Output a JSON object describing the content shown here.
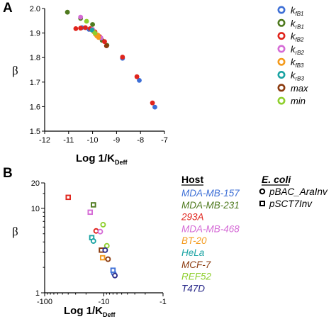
{
  "figure": {
    "panel_labels": [
      "A",
      "B"
    ],
    "colors": {
      "kfB1": "#3d6fd6",
      "krB1": "#4f7a1f",
      "kfB2": "#e0241c",
      "krB2": "#d56bd6",
      "kfB3": "#f49a1c",
      "krB3": "#1aa3a3",
      "max": "#8b3a0e",
      "min": "#8fcf2e",
      "T47D": "#2b2b8a"
    }
  },
  "chart_data": [
    {
      "panel": "A",
      "type": "scatter",
      "ylabel": "β",
      "xlabel_main": "Log 1/K",
      "xlabel_sub": "Deff",
      "xlim": [
        -12,
        -7
      ],
      "ylim": [
        1.5,
        2.0
      ],
      "x_ticks": [
        "-12",
        "-11",
        "-10",
        "-9",
        "-8",
        "-7"
      ],
      "y_ticks": [
        "1.5",
        "1.6",
        "1.7",
        "1.8",
        "1.9",
        "2.0"
      ],
      "grid": false,
      "legend_position": "right",
      "series": [
        {
          "name": "k",
          "sub": "fB1",
          "color_key": "kfB1",
          "points": [
            [
              -10.45,
              1.922
            ],
            [
              -10.15,
              1.915
            ],
            [
              -9.75,
              1.885
            ],
            [
              -8.75,
              1.797
            ],
            [
              -8.05,
              1.707
            ],
            [
              -7.4,
              1.598
            ]
          ]
        },
        {
          "name": "k",
          "sub": "rB1",
          "color_key": "krB1",
          "points": [
            [
              -11.05,
              1.985
            ],
            [
              -10.5,
              1.96
            ],
            [
              -10.0,
              1.935
            ],
            [
              -9.6,
              1.87
            ],
            [
              -9.4,
              1.85
            ]
          ]
        },
        {
          "name": "k",
          "sub": "fB2",
          "color_key": "kfB2",
          "points": [
            [
              -10.7,
              1.918
            ],
            [
              -10.5,
              1.92
            ],
            [
              -10.3,
              1.922
            ],
            [
              -10.1,
              1.918
            ],
            [
              -9.9,
              1.905
            ],
            [
              -9.7,
              1.885
            ],
            [
              -9.5,
              1.865
            ],
            [
              -8.75,
              1.802
            ],
            [
              -8.15,
              1.722
            ],
            [
              -7.5,
              1.615
            ]
          ]
        },
        {
          "name": "k",
          "sub": "rB2",
          "color_key": "krB2",
          "points": [
            [
              -10.5,
              1.965
            ],
            [
              -10.0,
              1.915
            ],
            [
              -9.65,
              1.88
            ]
          ]
        },
        {
          "name": "k",
          "sub": "fB3",
          "color_key": "kfB3",
          "points": [
            [
              -9.95,
              1.905
            ],
            [
              -9.88,
              1.895
            ],
            [
              -9.82,
              1.888
            ],
            [
              -9.78,
              1.892
            ],
            [
              -9.75,
              1.882
            ]
          ]
        },
        {
          "name": "k",
          "sub": "rB3",
          "color_key": "krB3",
          "points": [
            [
              -10.02,
              1.912
            ]
          ]
        },
        {
          "name": "max",
          "sub": "",
          "color_key": "max",
          "points": [
            [
              -9.42,
              1.848
            ]
          ]
        },
        {
          "name": "min",
          "sub": "",
          "color_key": "min",
          "points": [
            [
              -10.25,
              1.948
            ],
            [
              -9.9,
              1.9
            ]
          ]
        }
      ]
    },
    {
      "panel": "B",
      "type": "scatter",
      "ylabel": "β",
      "xlabel_main": "Log 1/K",
      "xlabel_sub": "Deff",
      "x_scale": "log (negative values)",
      "y_scale": "log",
      "xlim": [
        -100,
        -1
      ],
      "ylim": [
        1,
        20
      ],
      "x_ticks": [
        "-100",
        "-10",
        "-1"
      ],
      "y_ticks": [
        "1",
        "10",
        "20"
      ],
      "grid": false,
      "host_legend_title": "Host",
      "ecoli_legend_title": "E. coli",
      "ecoli_markers": [
        {
          "label": "pBAC_AraInv",
          "shape": "circle"
        },
        {
          "label": "pSCT7Inv",
          "shape": "square"
        }
      ],
      "hosts": [
        {
          "name": "MDA-MB-157",
          "color_key": "kfB1",
          "points": [
            {
              "x": -6.8,
              "y": 1.7,
              "m": "circle"
            },
            {
              "x": -7.0,
              "y": 1.85,
              "m": "square"
            }
          ]
        },
        {
          "name": "MDA-MB-231",
          "color_key": "krB1",
          "points": [
            {
              "x": -15.0,
              "y": 11.0,
              "m": "square"
            }
          ]
        },
        {
          "name": "293A",
          "color_key": "kfB2",
          "points": [
            {
              "x": -40.0,
              "y": 13.5,
              "m": "square"
            },
            {
              "x": -13.5,
              "y": 5.4,
              "m": "circle"
            }
          ]
        },
        {
          "name": "MDA-MB-468",
          "color_key": "krB2",
          "points": [
            {
              "x": -17.0,
              "y": 9.0,
              "m": "square"
            },
            {
              "x": -11.5,
              "y": 5.3,
              "m": "circle"
            }
          ]
        },
        {
          "name": "BT-20",
          "color_key": "kfB3",
          "points": [
            {
              "x": -10.5,
              "y": 2.6,
              "m": "square"
            }
          ]
        },
        {
          "name": "HeLa",
          "color_key": "krB3",
          "points": [
            {
              "x": -16.0,
              "y": 4.5,
              "m": "square"
            },
            {
              "x": -15.0,
              "y": 4.1,
              "m": "circle"
            }
          ]
        },
        {
          "name": "MCF-7",
          "color_key": "max",
          "points": [
            {
              "x": -11.0,
              "y": 3.2,
              "m": "square"
            },
            {
              "x": -8.5,
              "y": 2.5,
              "m": "circle"
            }
          ]
        },
        {
          "name": "REF52",
          "color_key": "min",
          "points": [
            {
              "x": -10.3,
              "y": 6.4,
              "m": "circle"
            },
            {
              "x": -8.9,
              "y": 3.6,
              "m": "circle"
            }
          ]
        },
        {
          "name": "T47D",
          "color_key": "T47D",
          "points": [
            {
              "x": -9.5,
              "y": 3.2,
              "m": "circle"
            },
            {
              "x": -6.5,
              "y": 1.6,
              "m": "circle"
            }
          ]
        }
      ]
    }
  ]
}
